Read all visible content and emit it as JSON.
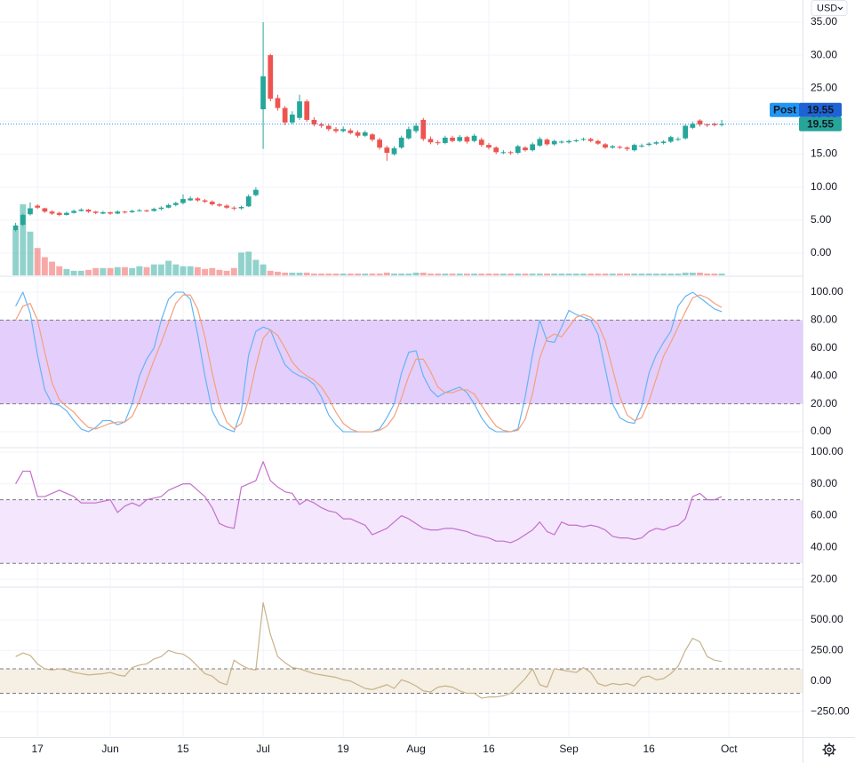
{
  "toolbar": {
    "currency": "USD"
  },
  "chart_data": [
    {
      "type": "candlestick",
      "up_color": "#26a69a",
      "down_color": "#ef5350",
      "open": [
        3.5,
        4.3,
        5.9,
        7.2,
        6.8,
        6.3,
        6.1,
        5.8,
        6.1,
        6.4,
        6.6,
        6.3,
        6.0,
        6.2,
        6.0,
        6.3,
        6.2,
        6.4,
        6.5,
        6.4,
        6.7,
        6.9,
        7.3,
        7.6,
        8.0,
        8.3,
        8.0,
        7.8,
        7.4,
        7.2,
        6.9,
        6.8,
        7.1,
        8.8,
        21.8,
        30.0,
        23.5,
        22.0,
        19.8,
        20.5,
        23.0,
        20.2,
        19.5,
        19.3,
        18.8,
        18.5,
        18.6,
        18.3,
        17.8,
        18.0,
        17.2,
        16.0,
        15.0,
        16.0,
        17.4,
        18.5,
        20.2,
        17.3,
        16.8,
        16.7,
        17.5,
        17.0,
        17.6,
        17.0,
        17.2,
        16.4,
        16.0,
        15.2,
        15.3,
        15.2,
        16.0,
        15.6,
        16.3,
        17.2,
        16.5,
        16.8,
        16.8,
        17.0,
        17.2,
        17.3,
        17.0,
        16.5,
        16.0,
        16.1,
        16.0,
        15.6,
        16.2,
        16.4,
        16.6,
        16.7,
        16.9,
        17.3,
        17.4,
        19.0,
        20.1,
        19.5,
        19.6,
        19.5
      ],
      "high": [
        4.6,
        6.0,
        7.7,
        7.4,
        6.9,
        6.5,
        6.3,
        6.3,
        6.6,
        6.8,
        6.7,
        6.4,
        6.4,
        6.3,
        6.5,
        6.4,
        6.6,
        6.7,
        6.6,
        6.9,
        7.1,
        7.5,
        7.8,
        8.9,
        8.6,
        8.5,
        8.2,
        8.0,
        7.6,
        7.4,
        7.1,
        7.2,
        8.9,
        10.0,
        35.0,
        30.2,
        24.0,
        22.3,
        21.5,
        24.0,
        23.3,
        20.6,
        19.8,
        19.6,
        19.1,
        19.2,
        18.9,
        18.6,
        18.6,
        18.2,
        17.5,
        16.3,
        16.2,
        17.8,
        19.2,
        19.7,
        20.5,
        17.7,
        17.1,
        17.8,
        17.8,
        17.9,
        17.8,
        18.1,
        17.5,
        16.7,
        16.2,
        15.6,
        15.5,
        16.4,
        16.2,
        16.8,
        17.6,
        17.4,
        17.2,
        17.1,
        17.2,
        17.3,
        17.5,
        17.5,
        17.2,
        16.7,
        16.4,
        16.3,
        16.2,
        16.6,
        16.6,
        16.8,
        17.0,
        17.1,
        17.8,
        17.6,
        19.5,
        19.9,
        20.3,
        19.7,
        19.8,
        20.2
      ],
      "low": [
        3.3,
        4.1,
        5.7,
        6.7,
        6.1,
        5.8,
        5.6,
        5.7,
        6.0,
        6.3,
        6.1,
        5.9,
        5.9,
        5.8,
        5.9,
        6.0,
        6.1,
        6.3,
        6.2,
        6.3,
        6.5,
        6.8,
        7.1,
        7.4,
        7.9,
        7.8,
        7.6,
        7.2,
        7.0,
        6.7,
        6.5,
        6.6,
        7.0,
        8.6,
        15.8,
        23.0,
        21.6,
        19.4,
        19.5,
        20.2,
        19.9,
        19.2,
        19.0,
        18.5,
        18.2,
        18.3,
        18.0,
        17.5,
        17.6,
        16.9,
        15.7,
        14.0,
        14.8,
        15.8,
        17.2,
        18.2,
        17.0,
        16.5,
        16.4,
        16.5,
        16.8,
        16.8,
        16.6,
        16.8,
        16.1,
        15.7,
        15.0,
        15.0,
        14.9,
        15.0,
        15.4,
        15.4,
        16.1,
        16.3,
        16.3,
        16.6,
        16.6,
        16.8,
        17.0,
        16.8,
        16.4,
        15.8,
        15.8,
        15.8,
        15.5,
        15.4,
        16.0,
        16.2,
        16.4,
        16.5,
        16.7,
        17.0,
        17.2,
        18.8,
        19.2,
        19.1,
        19.2,
        19.2
      ],
      "close": [
        4.2,
        5.8,
        6.8,
        6.9,
        6.3,
        6.0,
        5.8,
        6.1,
        6.4,
        6.6,
        6.3,
        6.1,
        6.2,
        6.0,
        6.3,
        6.2,
        6.4,
        6.5,
        6.4,
        6.7,
        6.9,
        7.3,
        7.6,
        8.2,
        8.3,
        8.0,
        7.8,
        7.4,
        7.2,
        6.9,
        6.8,
        7.0,
        8.6,
        9.6,
        26.8,
        23.4,
        22.0,
        19.8,
        21.0,
        23.0,
        20.2,
        19.5,
        19.3,
        18.8,
        18.5,
        18.8,
        18.2,
        17.8,
        18.3,
        17.2,
        16.0,
        15.2,
        15.9,
        17.5,
        18.8,
        19.3,
        17.3,
        16.8,
        16.7,
        17.5,
        17.0,
        17.6,
        16.9,
        17.8,
        16.4,
        16.0,
        15.3,
        15.3,
        15.2,
        16.2,
        15.6,
        16.5,
        17.3,
        16.5,
        17.0,
        16.9,
        17.0,
        17.1,
        17.3,
        17.0,
        16.6,
        16.0,
        16.2,
        16.0,
        15.8,
        16.4,
        16.3,
        16.6,
        16.8,
        16.9,
        17.6,
        17.3,
        19.3,
        19.6,
        19.5,
        19.4,
        19.4,
        19.55
      ],
      "volume": [
        50,
        78,
        48,
        30,
        20,
        15,
        10,
        7,
        5,
        5,
        6,
        8,
        8,
        8,
        9,
        9,
        8,
        10,
        9,
        12,
        12,
        16,
        12,
        10,
        10,
        9,
        7,
        8,
        6,
        5,
        8,
        25,
        26,
        17,
        12,
        5,
        4,
        3,
        3,
        3,
        3,
        2,
        2,
        2,
        2,
        2,
        2,
        2,
        2,
        2,
        2,
        3,
        2,
        2,
        2,
        3,
        3,
        2,
        2,
        2,
        2,
        2,
        2,
        2,
        2,
        2,
        2,
        2,
        2,
        2,
        2,
        2,
        2,
        2,
        2,
        2,
        2,
        2,
        2,
        2,
        2,
        2,
        2,
        2,
        2,
        2,
        2,
        2,
        2,
        2,
        2,
        2,
        3,
        3,
        3,
        2,
        2,
        2
      ],
      "last_price": 19.55,
      "post_label": "Post",
      "post_price": 19.55,
      "xlim": [
        -2.15,
        108.1
      ],
      "xticks": [
        {
          "value": 3,
          "label": "17"
        },
        {
          "value": 13,
          "label": "Jun"
        },
        {
          "value": 23,
          "label": "15"
        },
        {
          "value": 34,
          "label": "Jul"
        },
        {
          "value": 45,
          "label": "19"
        },
        {
          "value": 55,
          "label": "Aug"
        },
        {
          "value": 65,
          "label": "16"
        },
        {
          "value": 76,
          "label": "Sep"
        },
        {
          "value": 87,
          "label": "16"
        },
        {
          "value": 98,
          "label": "Oct"
        }
      ],
      "ylim": [
        -3.36,
        38.36
      ],
      "yticks": [
        {
          "value": 35,
          "label": "35.00"
        },
        {
          "value": 30,
          "label": "30.00"
        },
        {
          "value": 25,
          "label": "25.00"
        },
        {
          "value": 20,
          "label": "20.00"
        },
        {
          "value": 15,
          "label": "15.00"
        },
        {
          "value": 10,
          "label": "10.00"
        },
        {
          "value": 5,
          "label": "5.00"
        },
        {
          "value": 0,
          "label": "0.00"
        }
      ]
    },
    {
      "type": "line",
      "series": [
        {
          "color": "#64b5f6",
          "values": [
            90,
            100,
            85,
            55,
            30,
            20,
            19,
            15,
            8,
            2,
            0,
            3,
            8,
            8,
            5,
            7,
            20,
            40,
            52,
            60,
            80,
            95,
            100,
            100,
            95,
            70,
            40,
            15,
            5,
            2,
            0,
            15,
            55,
            72,
            75,
            73,
            60,
            48,
            43,
            40,
            38,
            34,
            25,
            12,
            5,
            0,
            0,
            0,
            0,
            0,
            2,
            10,
            20,
            42,
            57,
            58,
            40,
            30,
            25,
            28,
            30,
            32,
            28,
            20,
            10,
            3,
            0,
            0,
            0,
            2,
            25,
            55,
            80,
            65,
            64,
            75,
            87,
            84,
            82,
            80,
            70,
            45,
            20,
            10,
            7,
            6,
            18,
            42,
            55,
            64,
            72,
            90,
            97,
            100,
            96,
            92,
            88,
            86
          ]
        },
        {
          "color": "#f4a07c",
          "values": [
            80,
            90,
            92,
            80,
            57,
            35,
            23,
            18,
            14,
            8,
            3,
            2,
            4,
            6,
            7,
            7,
            11,
            22,
            37,
            51,
            64,
            78,
            92,
            98,
            98,
            88,
            68,
            42,
            20,
            7,
            2,
            6,
            23,
            47,
            67,
            73,
            69,
            60,
            50,
            44,
            40,
            37,
            32,
            24,
            14,
            6,
            2,
            0,
            0,
            0,
            1,
            4,
            11,
            24,
            40,
            52,
            52,
            43,
            32,
            28,
            28,
            30,
            30,
            27,
            19,
            11,
            4,
            1,
            0,
            1,
            9,
            27,
            53,
            67,
            70,
            68,
            75,
            82,
            84,
            82,
            77,
            65,
            45,
            25,
            12,
            8,
            10,
            22,
            38,
            54,
            64,
            75,
            86,
            96,
            98,
            96,
            92,
            89
          ]
        }
      ],
      "band": [
        20,
        80
      ],
      "band_color": "#e4cefb",
      "ylim": [
        -10.8,
        110.8
      ],
      "yticks": [
        {
          "value": 100,
          "label": "100.00"
        },
        {
          "value": 80,
          "label": "80.00"
        },
        {
          "value": 60,
          "label": "60.00"
        },
        {
          "value": 40,
          "label": "40.00"
        },
        {
          "value": 20,
          "label": "20.00"
        },
        {
          "value": 0,
          "label": "0.00"
        }
      ]
    },
    {
      "type": "line",
      "series": [
        {
          "color": "#c46fcb",
          "values": [
            80,
            88,
            88,
            72,
            72,
            74,
            76,
            74,
            72,
            68,
            68,
            68,
            69,
            70,
            62,
            66,
            68,
            66,
            70,
            71,
            72,
            76,
            78,
            80,
            80,
            76,
            72,
            65,
            55,
            53,
            52,
            78,
            80,
            82,
            94,
            82,
            78,
            75,
            74,
            67,
            70,
            68,
            65,
            63,
            62,
            58,
            58,
            56,
            54,
            48,
            50,
            52,
            56,
            60,
            58,
            55,
            52,
            51,
            51,
            52,
            52,
            51,
            50,
            48,
            47,
            46,
            44,
            44,
            43,
            45,
            48,
            51,
            56,
            50,
            48,
            56,
            54,
            54,
            53,
            54,
            53,
            51,
            47,
            46,
            46,
            45,
            46,
            50,
            52,
            51,
            53,
            54,
            58,
            72,
            74,
            70,
            70,
            72
          ]
        }
      ],
      "band": [
        30,
        70
      ],
      "band_color": "#f3e6fd",
      "ylim": [
        15.6,
        102.2
      ],
      "yticks": [
        {
          "value": 100,
          "label": "100.00"
        },
        {
          "value": 80,
          "label": "80.00"
        },
        {
          "value": 60,
          "label": "60.00"
        },
        {
          "value": 40,
          "label": "40.00"
        },
        {
          "value": 20,
          "label": "20.00"
        }
      ]
    },
    {
      "type": "line",
      "series": [
        {
          "color": "#c8b28a",
          "values": [
            200,
            230,
            210,
            140,
            100,
            90,
            100,
            90,
            70,
            60,
            50,
            55,
            60,
            70,
            50,
            40,
            110,
            130,
            140,
            180,
            200,
            250,
            230,
            220,
            180,
            120,
            60,
            40,
            -10,
            -30,
            170,
            130,
            100,
            90,
            640,
            380,
            200,
            150,
            110,
            100,
            80,
            60,
            50,
            40,
            30,
            10,
            0,
            -30,
            -60,
            -70,
            -50,
            -30,
            -60,
            10,
            -10,
            -40,
            -80,
            -90,
            -50,
            -40,
            -50,
            -80,
            -100,
            -100,
            -140,
            -130,
            -130,
            -120,
            -100,
            -40,
            20,
            100,
            -30,
            -50,
            100,
            90,
            80,
            70,
            110,
            70,
            -20,
            -40,
            -20,
            -30,
            -20,
            -40,
            30,
            40,
            10,
            20,
            60,
            120,
            250,
            350,
            320,
            200,
            170,
            160
          ]
        }
      ],
      "band": [
        -100,
        100
      ],
      "band_color": "#f6efe3",
      "ylim": [
        -459,
        760
      ],
      "yticks": [
        {
          "value": 500,
          "label": "500.00"
        },
        {
          "value": 250,
          "label": "250.00"
        },
        {
          "value": 0,
          "label": "0.00"
        },
        {
          "value": -250,
          "label": "−250.00"
        }
      ]
    }
  ]
}
